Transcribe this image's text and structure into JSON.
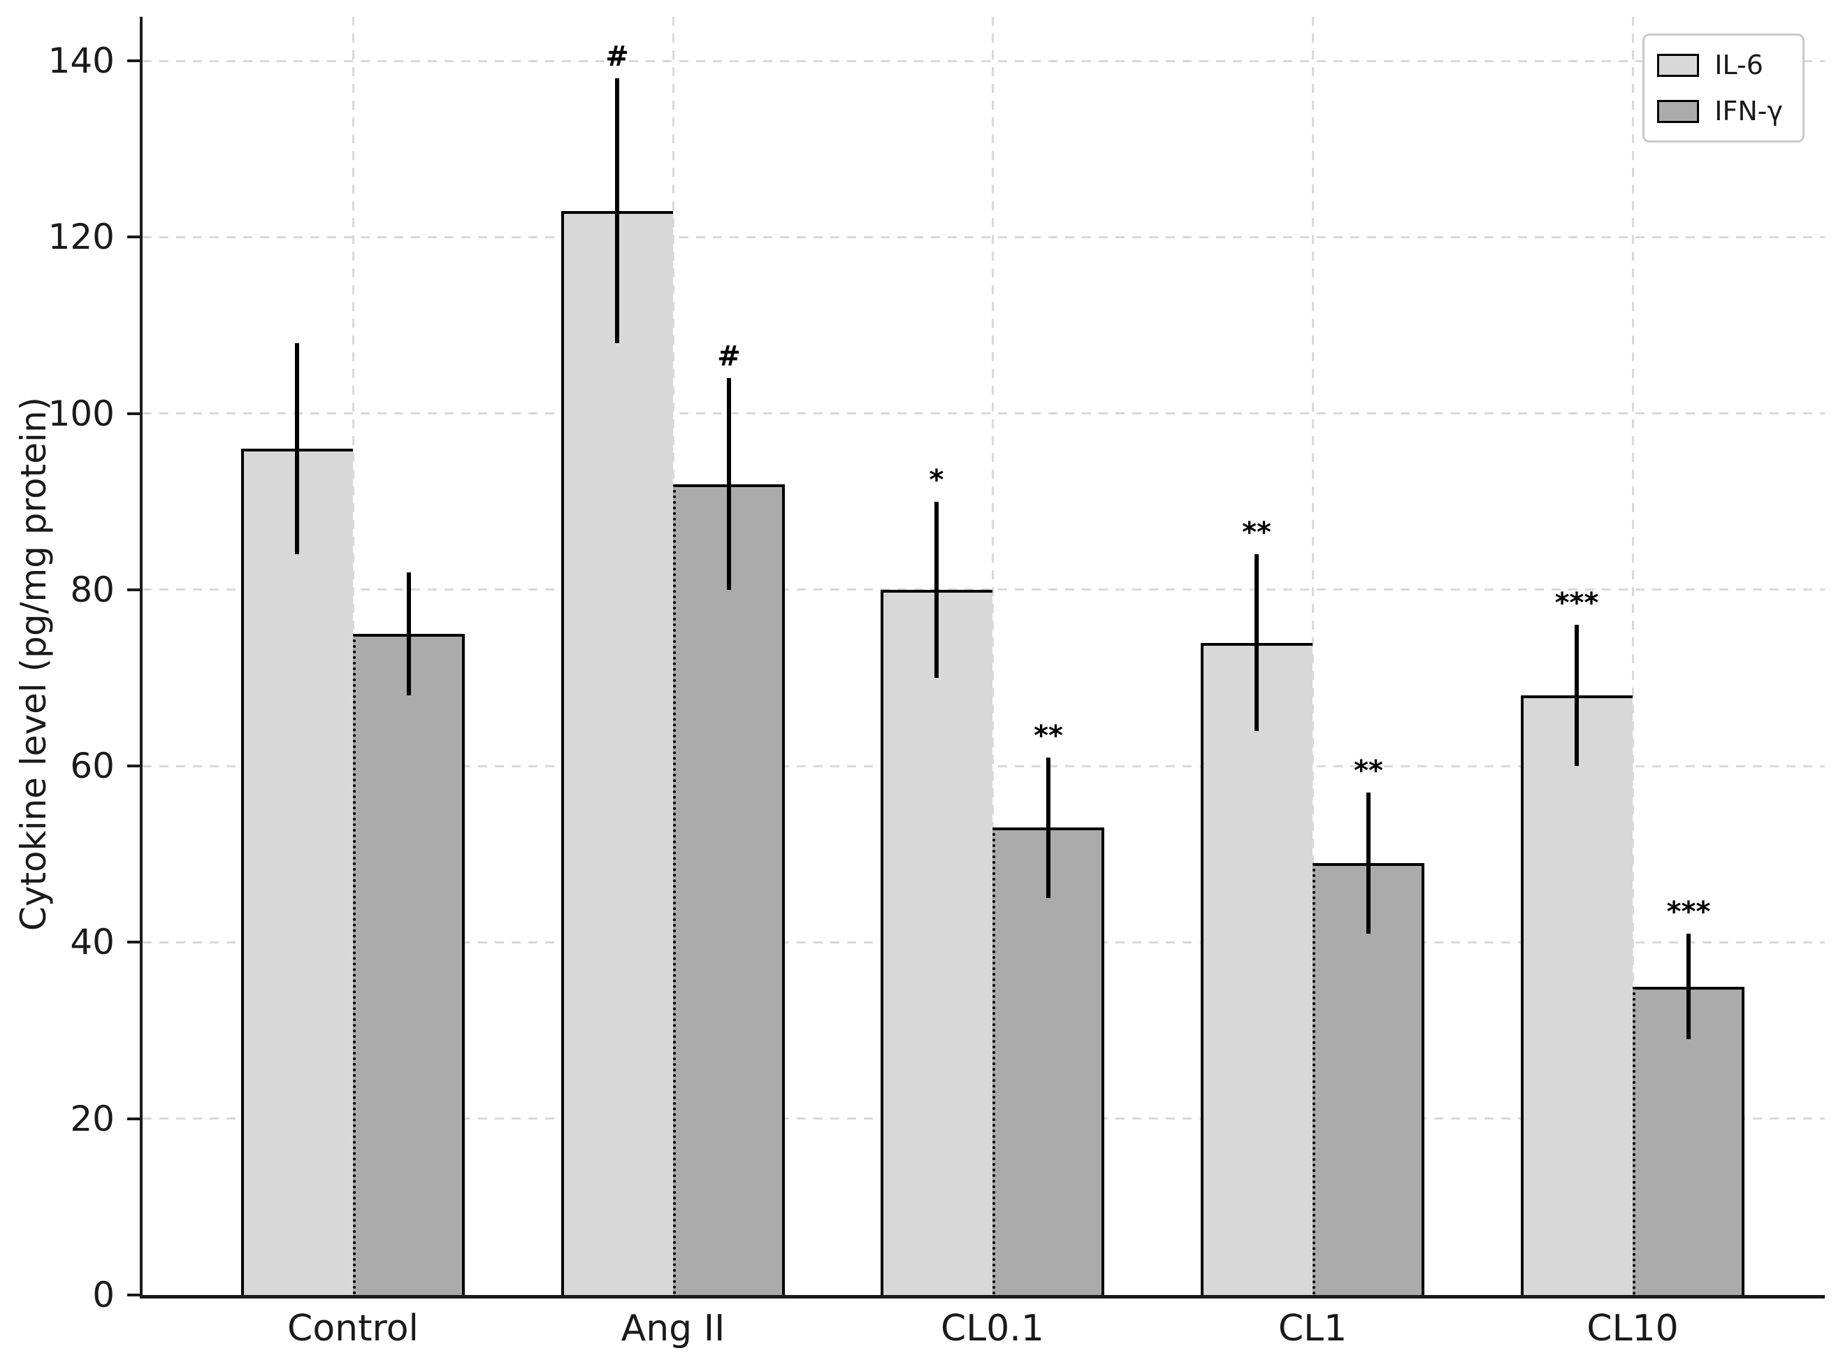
{
  "chart_data": {
    "type": "bar",
    "title": "",
    "xlabel": "",
    "ylabel": "Cytokine level (pg/mg protein)",
    "categories": [
      "Control",
      "Ang II",
      "CL0.1",
      "CL1",
      "CL10"
    ],
    "series": [
      {
        "name": "IL-6",
        "color": "#d8d8d8",
        "values": [
          96,
          123,
          80,
          74,
          68
        ],
        "errors": [
          12,
          15,
          10,
          10,
          8
        ],
        "sig_markers": [
          "",
          "#",
          "*",
          "**",
          "***"
        ]
      },
      {
        "name": "IFN-γ",
        "color": "#ababab",
        "values": [
          75,
          92,
          53,
          49,
          35
        ],
        "errors": [
          7,
          12,
          8,
          8,
          6
        ],
        "sig_markers": [
          "",
          "#",
          "**",
          "**",
          "***"
        ]
      }
    ],
    "yticks": [
      0,
      20,
      40,
      60,
      80,
      100,
      120,
      140
    ],
    "ylim": [
      0,
      145
    ],
    "grid": true,
    "gridline_style": "dashed",
    "grid_color": "#d9d9d9",
    "bar_edge_color": "#000000",
    "axis_color": "#1a1a1a",
    "error_bar_caps": false,
    "legend_position": "upper right"
  }
}
